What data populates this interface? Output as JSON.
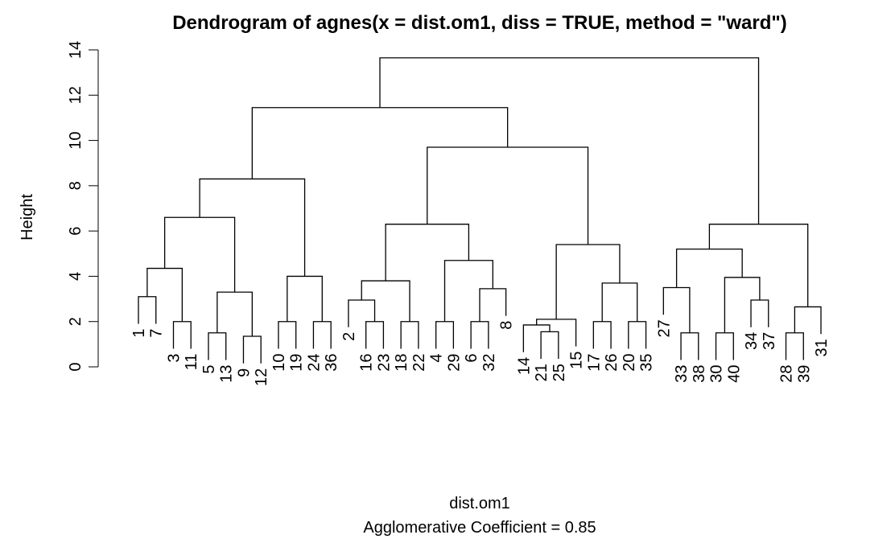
{
  "chart_data": {
    "type": "dendrogram",
    "title": "Dendrogram of  agnes(x = dist.om1, diss = TRUE, method = \"ward\")",
    "ylabel": "Height",
    "xlabel": "dist.om1",
    "subtitle": "Agglomerative Coefficient =  0.85",
    "ylim": [
      0,
      14
    ],
    "yticks": [
      0,
      2,
      4,
      6,
      8,
      10,
      12,
      14
    ],
    "color": "#000000",
    "labels": [
      "1",
      "7",
      "3",
      "11",
      "5",
      "13",
      "9",
      "12",
      "10",
      "19",
      "24",
      "36",
      "2",
      "16",
      "23",
      "18",
      "22",
      "4",
      "29",
      "6",
      "32",
      "8",
      "14",
      "21",
      "25",
      "15",
      "17",
      "26",
      "20",
      "35",
      "27",
      "33",
      "38",
      "30",
      "40",
      "34",
      "37",
      "28",
      "39",
      "31"
    ],
    "merge": [
      [
        -1,
        -2
      ],
      [
        -3,
        -4
      ],
      [
        1,
        2
      ],
      [
        -5,
        -6
      ],
      [
        -7,
        -8
      ],
      [
        4,
        5
      ],
      [
        3,
        6
      ],
      [
        -9,
        -10
      ],
      [
        -11,
        -12
      ],
      [
        8,
        9
      ],
      [
        7,
        10
      ],
      [
        -14,
        -15
      ],
      [
        -13,
        12
      ],
      [
        -16,
        -17
      ],
      [
        13,
        14
      ],
      [
        -18,
        -19
      ],
      [
        -20,
        -21
      ],
      [
        17,
        -22
      ],
      [
        16,
        18
      ],
      [
        15,
        19
      ],
      [
        -24,
        -25
      ],
      [
        -23,
        21
      ],
      [
        22,
        -26
      ],
      [
        -27,
        -28
      ],
      [
        -29,
        -30
      ],
      [
        24,
        25
      ],
      [
        23,
        26
      ],
      [
        20,
        27
      ],
      [
        11,
        28
      ],
      [
        -32,
        -33
      ],
      [
        -31,
        30
      ],
      [
        -34,
        -35
      ],
      [
        -36,
        -37
      ],
      [
        32,
        33
      ],
      [
        31,
        34
      ],
      [
        -38,
        -39
      ],
      [
        36,
        -40
      ],
      [
        35,
        37
      ],
      [
        29,
        38
      ]
    ],
    "height": [
      3.1,
      2.0,
      4.35,
      1.5,
      1.35,
      3.3,
      6.6,
      2.0,
      2.0,
      4.0,
      8.3,
      2.0,
      2.95,
      2.0,
      3.8,
      2.0,
      2.0,
      3.45,
      4.7,
      6.3,
      1.55,
      1.85,
      2.1,
      2.0,
      2.0,
      3.7,
      5.4,
      9.7,
      11.45,
      1.5,
      3.5,
      1.5,
      2.95,
      3.95,
      5.2,
      1.5,
      2.65,
      6.3,
      13.65
    ]
  }
}
